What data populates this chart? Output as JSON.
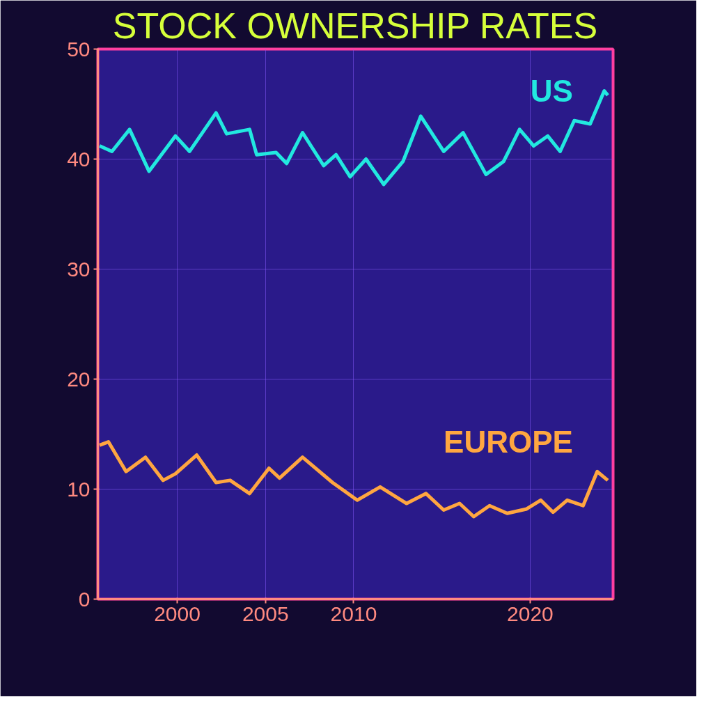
{
  "chart_data": {
    "type": "line",
    "title": "STOCK OWNERSHIP RATES",
    "xlim": [
      1995.5,
      2024.7
    ],
    "ylim": [
      0,
      50
    ],
    "xticks": [
      2000,
      2005,
      2010,
      2020
    ],
    "yticks": [
      0,
      10,
      20,
      30,
      40,
      50
    ],
    "grid": true,
    "marker": "none",
    "line_style": "solid",
    "series": [
      {
        "name": "US",
        "color": "#22e8e0",
        "x": [
          1995.6,
          1996.3,
          1997.3,
          1998.4,
          1999.9,
          2000.7,
          2002.2,
          2002.8,
          2004.1,
          2004.5,
          2005.6,
          2006.2,
          2007.1,
          2008.3,
          2009.0,
          2009.8,
          2010.7,
          2011.7,
          2012.8,
          2013.8,
          2015.1,
          2016.2,
          2017.5,
          2018.5,
          2019.4,
          2020.2,
          2021.0,
          2021.7,
          2022.5,
          2023.4,
          2024.2,
          2024.4
        ],
        "values": [
          41.2,
          40.7,
          42.7,
          38.9,
          42.1,
          40.7,
          44.2,
          42.3,
          42.7,
          40.4,
          40.6,
          39.6,
          42.4,
          39.4,
          40.4,
          38.4,
          40,
          37.7,
          39.8,
          43.9,
          40.7,
          42.4,
          38.6,
          39.8,
          42.7,
          41.2,
          42.1,
          40.7,
          43.5,
          43.2,
          46.2,
          45.8
        ]
      },
      {
        "name": "EUROPE",
        "color": "#ffa640",
        "x": [
          1995.6,
          1996.1,
          1997.1,
          1998.2,
          1999.2,
          1999.9,
          2001.1,
          2002.2,
          2003.0,
          2004.1,
          2005.2,
          2005.8,
          2007.1,
          2008.8,
          2010.2,
          2011.5,
          2013.0,
          2014.1,
          2015.1,
          2016.0,
          2016.8,
          2017.7,
          2018.7,
          2019.8,
          2020.6,
          2021.3,
          2022.1,
          2023.0,
          2023.8,
          2024.4
        ],
        "values": [
          14,
          14.3,
          11.6,
          12.9,
          10.8,
          11.4,
          13.1,
          10.6,
          10.8,
          9.6,
          11.9,
          11,
          12.9,
          10.6,
          9,
          10.2,
          8.7,
          9.6,
          8.1,
          8.7,
          7.5,
          8.5,
          7.8,
          8.2,
          9,
          7.9,
          9,
          8.5,
          11.6,
          10.8
        ]
      }
    ]
  }
}
